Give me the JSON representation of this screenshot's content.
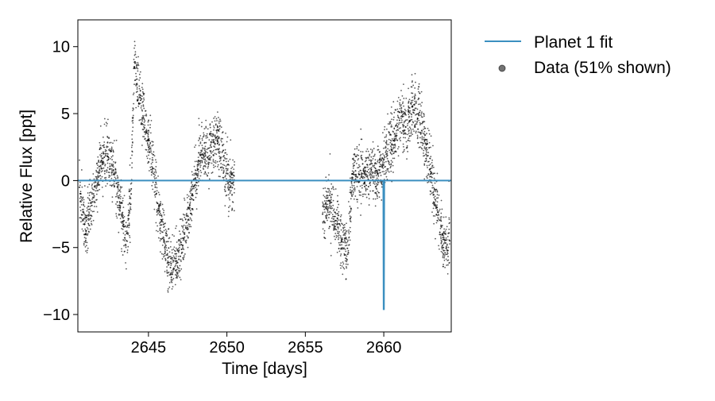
{
  "chart_data": {
    "type": "scatter",
    "title": "",
    "xlabel": "Time [days]",
    "ylabel": "Relative Flux [ppt]",
    "xlim": [
      2640.5,
      2664.3
    ],
    "ylim": [
      -11.3,
      12.0
    ],
    "xticks": [
      2645,
      2650,
      2655,
      2660
    ],
    "yticks": [
      -10,
      -5,
      0,
      5,
      10
    ],
    "ytick_labels": [
      "−10",
      "−5",
      "0",
      "5",
      "10"
    ],
    "grid": false,
    "legend": {
      "placement": "outside-right-top",
      "entries": [
        {
          "label": "Planet 1 fit",
          "kind": "line",
          "color": "#3b8fc0"
        },
        {
          "label": "Data (51% shown)",
          "kind": "marker",
          "color": "#000000"
        }
      ]
    },
    "series": [
      {
        "name": "Data (51% shown)",
        "kind": "scatter",
        "color": "#000000",
        "x": [
          2640.6,
          2641.0,
          2641.5,
          2642.0,
          2642.4,
          2642.8,
          2643.2,
          2643.6,
          2643.9,
          2644.1,
          2644.5,
          2645.0,
          2645.5,
          2646.0,
          2646.4,
          2646.8,
          2647.3,
          2647.8,
          2648.2,
          2648.6,
          2649.0,
          2649.4,
          2649.8,
          2650.2,
          2650.5,
          2656.1,
          2656.5,
          2656.9,
          2657.3,
          2657.7,
          2658.0,
          2658.4,
          2658.8,
          2659.2,
          2659.6,
          2659.9,
          2660.2,
          2660.6,
          2661.0,
          2661.4,
          2661.8,
          2662.2,
          2662.6,
          2663.0,
          2663.4,
          2663.8,
          2664.2
        ],
        "y": [
          -0.5,
          -4.0,
          -1.0,
          1.5,
          1.8,
          0.5,
          -2.0,
          -4.5,
          -1.0,
          8.5,
          6.0,
          3.0,
          -1.0,
          -4.5,
          -6.5,
          -6.0,
          -4.0,
          -1.0,
          1.5,
          2.0,
          2.5,
          3.0,
          1.5,
          -0.5,
          0.0,
          -2.5,
          -1.5,
          -3.0,
          -4.5,
          -5.5,
          0.5,
          0.5,
          0.5,
          0.8,
          0.5,
          1.0,
          2.0,
          3.0,
          4.5,
          4.0,
          5.5,
          5.0,
          3.0,
          0.5,
          -2.0,
          -5.0,
          -4.5
        ]
      },
      {
        "name": "Planet 1 fit",
        "kind": "line",
        "color": "#3b8fc0",
        "x": [
          2640.5,
          2659.97,
          2659.99,
          2660.01,
          2660.03,
          2664.3
        ],
        "y": [
          0.0,
          0.0,
          -9.6,
          -9.6,
          0.0,
          0.0
        ]
      }
    ]
  }
}
